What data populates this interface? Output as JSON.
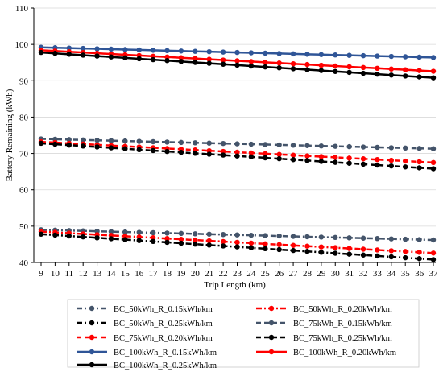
{
  "chart_data": {
    "type": "line",
    "title": "",
    "xlabel": "Trip Length (km)",
    "ylabel": "Battery Remaining (kWh)",
    "x": [
      9,
      10,
      11,
      12,
      13,
      14,
      15,
      16,
      17,
      18,
      19,
      20,
      21,
      22,
      23,
      24,
      25,
      26,
      27,
      28,
      29,
      30,
      31,
      32,
      33,
      34,
      35,
      36,
      37
    ],
    "xlim": [
      9,
      37
    ],
    "ylim": [
      40,
      110
    ],
    "yticks": [
      40,
      50,
      60,
      70,
      80,
      90,
      100,
      110
    ],
    "grid": "horizontal",
    "legend_placement": "bottom",
    "series": [
      {
        "name": "BC_50kWh_R_0.15kWh/km",
        "color": "#44546a",
        "dash": "dash-dot",
        "start": 49.0,
        "end": 46.2
      },
      {
        "name": "BC_50kWh_R_0.20kWh/km",
        "color": "#ff0000",
        "dash": "dash-dot",
        "start": 48.5,
        "end": 42.6
      },
      {
        "name": "BC_50kWh_R_0.25kWh/km",
        "color": "#000000",
        "dash": "dash-dot",
        "start": 47.8,
        "end": 40.8
      },
      {
        "name": "BC_75kWh_R_0.15kWh/km",
        "color": "#44546a",
        "dash": "dashed",
        "start": 74.0,
        "end": 71.3
      },
      {
        "name": "BC_75kWh_R_0.20kWh/km",
        "color": "#ff0000",
        "dash": "dashed",
        "start": 73.2,
        "end": 67.5
      },
      {
        "name": "BC_75kWh_R_0.25kWh/km",
        "color": "#000000",
        "dash": "dashed",
        "start": 72.8,
        "end": 65.8
      },
      {
        "name": "BC_100kWh_R_0.15kWh/km",
        "color": "#2f5597",
        "dash": "solid",
        "start": 99.2,
        "end": 96.4
      },
      {
        "name": "BC_100kWh_R_0.20kWh/km",
        "color": "#ff0000",
        "dash": "solid",
        "start": 98.4,
        "end": 92.6
      },
      {
        "name": "BC_100kWh_R_0.25kWh/km",
        "color": "#000000",
        "dash": "solid",
        "start": 97.8,
        "end": 90.8
      }
    ]
  }
}
